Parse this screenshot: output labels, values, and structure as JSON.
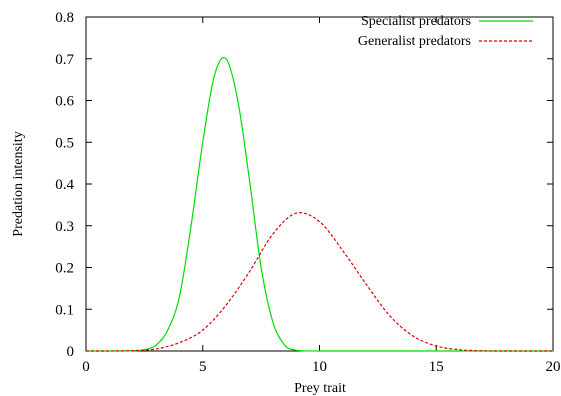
{
  "chart_data": {
    "type": "line",
    "xlabel": "Prey trait",
    "ylabel": "Predation intensity",
    "xlim": [
      0,
      20
    ],
    "ylim": [
      0,
      0.8
    ],
    "xticks": [
      0,
      5,
      10,
      15,
      20
    ],
    "yticks": [
      0,
      0.1,
      0.2,
      0.3,
      0.4,
      0.5,
      0.6,
      0.7,
      0.8
    ],
    "grid": false,
    "legend_position": "top-right",
    "series": [
      {
        "name": "Specialist predators",
        "color": "#00dd00",
        "style": "solid",
        "x": [
          0,
          1,
          2,
          2.5,
          3,
          3.5,
          4,
          4.5,
          5,
          5.5,
          6,
          6.5,
          7,
          7.5,
          8,
          8.5,
          9,
          10,
          12,
          15,
          20
        ],
        "y": [
          0,
          0,
          0.0006,
          0.003,
          0.014,
          0.05,
          0.13,
          0.3,
          0.5,
          0.66,
          0.7,
          0.6,
          0.41,
          0.2,
          0.07,
          0.015,
          0.002,
          0,
          0,
          0,
          0
        ]
      },
      {
        "name": "Generalist predators",
        "color": "#dd0000",
        "style": "dashed",
        "x": [
          0,
          1,
          2,
          3,
          4,
          5,
          6,
          7,
          8,
          9,
          10,
          11,
          12,
          13,
          14,
          15,
          16,
          17,
          18,
          20
        ],
        "y": [
          0,
          0.0001,
          0.001,
          0.005,
          0.02,
          0.05,
          0.11,
          0.19,
          0.28,
          0.33,
          0.31,
          0.24,
          0.16,
          0.085,
          0.036,
          0.012,
          0.003,
          0.0005,
          0,
          0
        ]
      }
    ]
  }
}
